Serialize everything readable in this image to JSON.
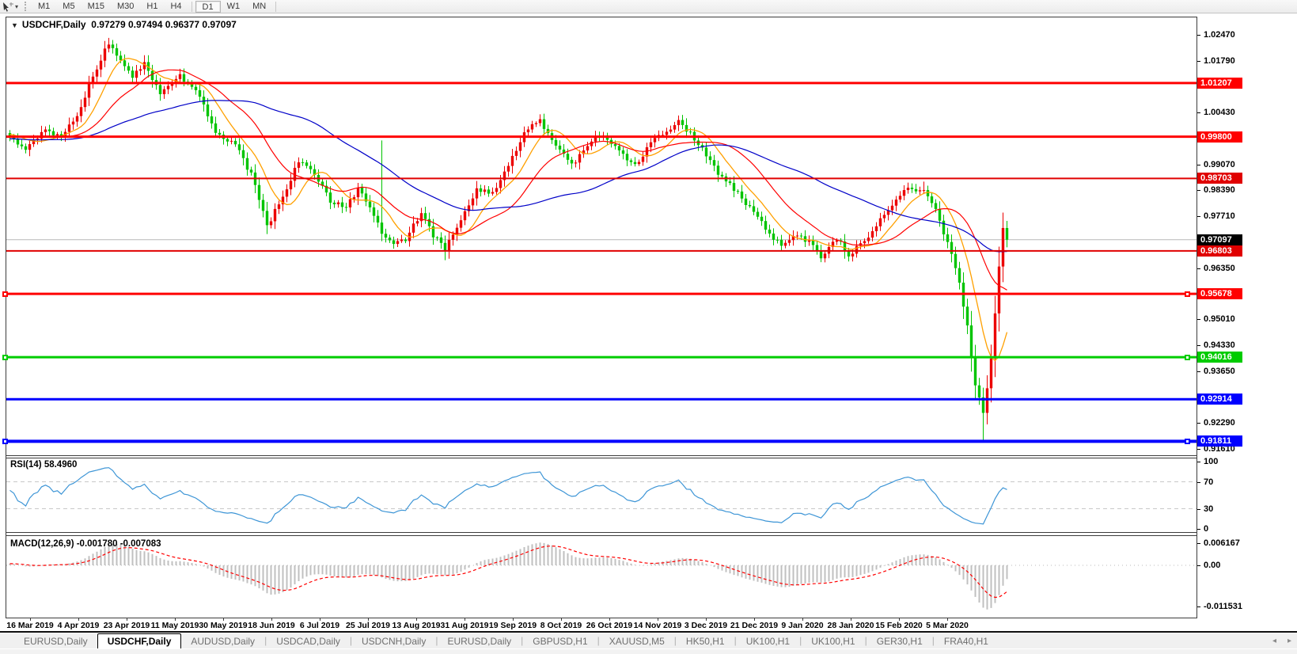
{
  "toolbar": {
    "timeframes": [
      "M1",
      "M5",
      "M15",
      "M30",
      "H1",
      "H4",
      "D1",
      "W1",
      "MN"
    ],
    "active_timeframe": "D1"
  },
  "chart_title": {
    "caret": "▼",
    "symbol": "USDCHF,Daily",
    "ohlc": "0.97279 0.97494 0.96377 0.97097"
  },
  "tabs": {
    "items": [
      {
        "label": "EURUSD,Daily",
        "active": false
      },
      {
        "label": "USDCHF,Daily",
        "active": true
      },
      {
        "label": "AUDUSD,Daily",
        "active": false
      },
      {
        "label": "USDCAD,Daily",
        "active": false
      },
      {
        "label": "USDCNH,Daily",
        "active": false
      },
      {
        "label": "EURUSD,Daily",
        "active": false
      },
      {
        "label": "GBPUSD,H1",
        "active": false
      },
      {
        "label": "XAUUSD,M5",
        "active": false
      },
      {
        "label": "HK50,H1",
        "active": false
      },
      {
        "label": "UK100,H1",
        "active": false
      },
      {
        "label": "UK100,H1",
        "active": false
      },
      {
        "label": "GER30,H1",
        "active": false
      },
      {
        "label": "FRA40,H1",
        "active": false
      }
    ],
    "scroll_left": "◂",
    "scroll_right": "▸"
  },
  "chart_data": {
    "type": "candlestick",
    "symbol": "USDCHF",
    "timeframe": "Daily",
    "display_ohlc": {
      "open": 0.97279,
      "high": 0.97494,
      "low": 0.96377,
      "close": 0.97097
    },
    "current_price": 0.97097,
    "current_price_line_color": "#b8b8b8",
    "x_axis": {
      "labels": [
        "16 Mar 2019",
        "4 Apr 2019",
        "23 Apr 2019",
        "11 May 2019",
        "30 May 2019",
        "18 Jun 2019",
        "6 Jul 2019",
        "25 Jul 2019",
        "13 Aug 2019",
        "31 Aug 2019",
        "19 Sep 2019",
        "8 Oct 2019",
        "26 Oct 2019",
        "14 Nov 2019",
        "3 Dec 2019",
        "21 Dec 2019",
        "9 Jan 2020",
        "28 Jan 2020",
        "15 Feb 2020",
        "5 Mar 2020"
      ]
    },
    "y_axis": {
      "max": 1.0247,
      "min": 0.9161,
      "visible_ticks": [
        1.0247,
        1.0179,
        1.0043,
        0.9907,
        0.9839,
        0.9771,
        0.9635,
        0.9501,
        0.9433,
        0.9365,
        0.9229,
        0.9161
      ]
    },
    "horizontal_lines": [
      {
        "price": 1.01207,
        "color": "#ff0000",
        "width": 3,
        "selected": false
      },
      {
        "price": 0.998,
        "color": "#ff0000",
        "width": 3,
        "selected": false
      },
      {
        "price": 0.98703,
        "color": "#e00000",
        "width": 2,
        "selected": false
      },
      {
        "price": 0.96803,
        "color": "#e00000",
        "width": 2,
        "selected": false
      },
      {
        "price": 0.95678,
        "color": "#ff0000",
        "width": 3,
        "selected": true
      },
      {
        "price": 0.94016,
        "color": "#00cc00",
        "width": 3,
        "selected": true
      },
      {
        "price": 0.92914,
        "color": "#0000ff",
        "width": 3,
        "selected": false
      },
      {
        "price": 0.91811,
        "color": "#0000ff",
        "width": 4,
        "selected": true
      }
    ],
    "candles": {
      "count": 253,
      "up_color": "#ec0000",
      "down_color": "#00c400",
      "close_anchors": [
        [
          0,
          0.9985
        ],
        [
          4,
          0.9945
        ],
        [
          9,
          1.0
        ],
        [
          13,
          0.998
        ],
        [
          17,
          1.0035
        ],
        [
          21,
          1.014
        ],
        [
          25,
          1.0225
        ],
        [
          28,
          1.0185
        ],
        [
          31,
          1.013
        ],
        [
          34,
          1.018
        ],
        [
          38,
          1.009
        ],
        [
          43,
          1.014
        ],
        [
          47,
          1.0105
        ],
        [
          52,
          0.999
        ],
        [
          57,
          0.9962
        ],
        [
          61,
          0.988
        ],
        [
          65,
          0.9745
        ],
        [
          69,
          0.9822
        ],
        [
          73,
          0.9915
        ],
        [
          77,
          0.9886
        ],
        [
          81,
          0.9812
        ],
        [
          85,
          0.9792
        ],
        [
          88,
          0.9842
        ],
        [
          91,
          0.98
        ],
        [
          94,
          0.9725
        ],
        [
          97,
          0.9692
        ],
        [
          100,
          0.9712
        ],
        [
          104,
          0.9778
        ],
        [
          107,
          0.9722
        ],
        [
          110,
          0.9684
        ],
        [
          114,
          0.9762
        ],
        [
          118,
          0.9842
        ],
        [
          122,
          0.9836
        ],
        [
          126,
          0.9902
        ],
        [
          130,
          0.9995
        ],
        [
          134,
          1.0022
        ],
        [
          138,
          0.9952
        ],
        [
          142,
          0.9905
        ],
        [
          146,
          0.9962
        ],
        [
          150,
          0.9985
        ],
        [
          154,
          0.9945
        ],
        [
          158,
          0.9902
        ],
        [
          162,
          0.9965
        ],
        [
          166,
          0.9996
        ],
        [
          169,
          1.0024
        ],
        [
          172,
          0.9988
        ],
        [
          176,
          0.993
        ],
        [
          180,
          0.9872
        ],
        [
          184,
          0.9832
        ],
        [
          188,
          0.9782
        ],
        [
          192,
          0.9726
        ],
        [
          195,
          0.9696
        ],
        [
          198,
          0.9722
        ],
        [
          202,
          0.9701
        ],
        [
          205,
          0.9668
        ],
        [
          209,
          0.9712
        ],
        [
          212,
          0.9672
        ],
        [
          216,
          0.97
        ],
        [
          220,
          0.9762
        ],
        [
          224,
          0.982
        ],
        [
          228,
          0.9846
        ],
        [
          231,
          0.984
        ],
        [
          234,
          0.9792
        ],
        [
          237,
          0.97
        ],
        [
          240,
          0.9598
        ],
        [
          242,
          0.948
        ],
        [
          244,
          0.933
        ],
        [
          246,
          0.9255
        ],
        [
          248,
          0.9392
        ],
        [
          250,
          0.9632
        ],
        [
          251,
          0.9742
        ],
        [
          252,
          0.97097
        ]
      ],
      "high_overrides": [
        [
          25,
          1.0239
        ],
        [
          94,
          0.997
        ],
        [
          231,
          0.9862
        ]
      ],
      "low_overrides": [
        [
          65,
          0.9737
        ],
        [
          110,
          0.9656
        ],
        [
          205,
          0.9656
        ],
        [
          246,
          0.9182
        ]
      ]
    },
    "moving_averages": [
      {
        "period": 9,
        "color": "#ffa000"
      },
      {
        "period": 21,
        "color": "#ff0000"
      },
      {
        "period": 55,
        "color": "#0000c8"
      }
    ],
    "rsi": {
      "label": "RSI(14) 58.4960",
      "period": 14,
      "value": 58.496,
      "levels": [
        70,
        30
      ],
      "scale_values": [
        100,
        70,
        30,
        0
      ],
      "scale_labels": [
        "100",
        "70",
        "30",
        "0"
      ],
      "color": "#3d95d6",
      "level_color": "#c8c8c8"
    },
    "macd": {
      "label": "MACD(12,26,9) -0.001780 -0.007083",
      "fast": 12,
      "slow": 26,
      "signal": 9,
      "macd_value": -0.00178,
      "signal_value": -0.007083,
      "scale_values": [
        0.006167,
        0,
        -0.011531
      ],
      "scale_labels": [
        "0.006167",
        "0.00",
        "-0.011531"
      ],
      "histogram_color": "#c0c0c0",
      "signal_color": "#ff0000"
    }
  }
}
